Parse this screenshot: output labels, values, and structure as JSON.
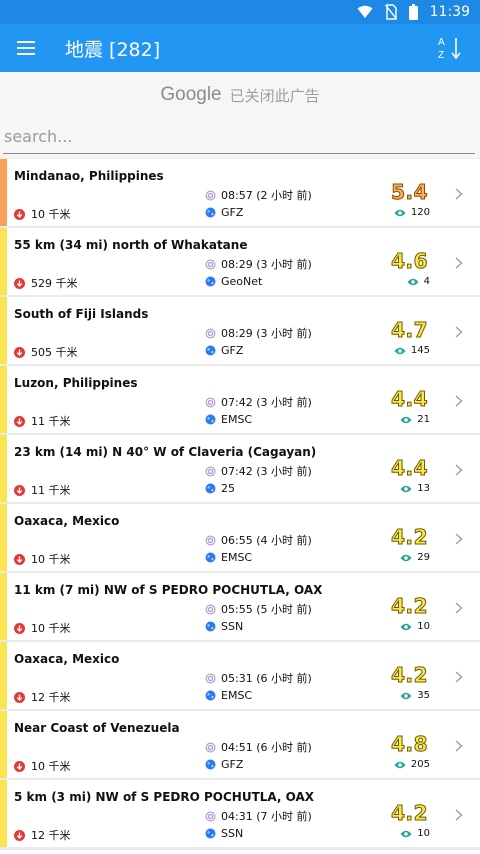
{
  "status_bar": {
    "time": "11:39",
    "icons": [
      "wifi-icon",
      "no-sim-icon",
      "battery-icon"
    ]
  },
  "app_bar": {
    "title": "地震 [282]",
    "menu_icon": "hamburger-menu-icon",
    "sort_icon": "sort-az-icon"
  },
  "ad": {
    "brand": "Google",
    "text": "已关闭此广告"
  },
  "search": {
    "placeholder": "search...",
    "value": ""
  },
  "colors": {
    "status_bar": "#1e88e5",
    "app_bar": "#2196f3",
    "stripe_orange": "#f9a05a",
    "stripe_yellow": "#fbe451",
    "depth_dot": "#e53935",
    "source_globe": "#2979ff",
    "eye": "#26a69a"
  },
  "quakes": [
    {
      "location": "Mindanao, Philippines",
      "depth": "10 千米",
      "time": "08:57 (2 小时 前)",
      "source": "GFZ",
      "magnitude": "5.4",
      "views": "120",
      "level": "orange"
    },
    {
      "location": "55 km (34 mi) north of Whakatane",
      "depth": "529 千米",
      "time": "08:29 (3 小时 前)",
      "source": "GeoNet",
      "magnitude": "4.6",
      "views": "4",
      "level": "yellow"
    },
    {
      "location": "South of Fiji Islands",
      "depth": "505 千米",
      "time": "08:29 (3 小时 前)",
      "source": "GFZ",
      "magnitude": "4.7",
      "views": "145",
      "level": "yellow"
    },
    {
      "location": "Luzon, Philippines",
      "depth": "11 千米",
      "time": "07:42 (3 小时 前)",
      "source": "EMSC",
      "magnitude": "4.4",
      "views": "21",
      "level": "yellow"
    },
    {
      "location": "23 km (14 mi) N 40° W of Claveria (Cagayan)",
      "depth": "11 千米",
      "time": "07:42 (3 小时 前)",
      "source": "25",
      "magnitude": "4.4",
      "views": "13",
      "level": "yellow"
    },
    {
      "location": "Oaxaca, Mexico",
      "depth": "10 千米",
      "time": "06:55 (4 小时 前)",
      "source": "EMSC",
      "magnitude": "4.2",
      "views": "29",
      "level": "yellow"
    },
    {
      "location": "11 km (7 mi) NW of S PEDRO POCHUTLA, OAX",
      "depth": "10 千米",
      "time": "05:55 (5 小时 前)",
      "source": "SSN",
      "magnitude": "4.2",
      "views": "10",
      "level": "yellow"
    },
    {
      "location": "Oaxaca, Mexico",
      "depth": "12 千米",
      "time": "05:31 (6 小时 前)",
      "source": "EMSC",
      "magnitude": "4.2",
      "views": "35",
      "level": "yellow"
    },
    {
      "location": "Near Coast of Venezuela",
      "depth": "10 千米",
      "time": "04:51 (6 小时 前)",
      "source": "GFZ",
      "magnitude": "4.8",
      "views": "205",
      "level": "yellow"
    },
    {
      "location": "5 km (3 mi) NW of S PEDRO POCHUTLA, OAX",
      "depth": "12 千米",
      "time": "04:31 (7 小时 前)",
      "source": "SSN",
      "magnitude": "4.2",
      "views": "10",
      "level": "yellow"
    }
  ]
}
